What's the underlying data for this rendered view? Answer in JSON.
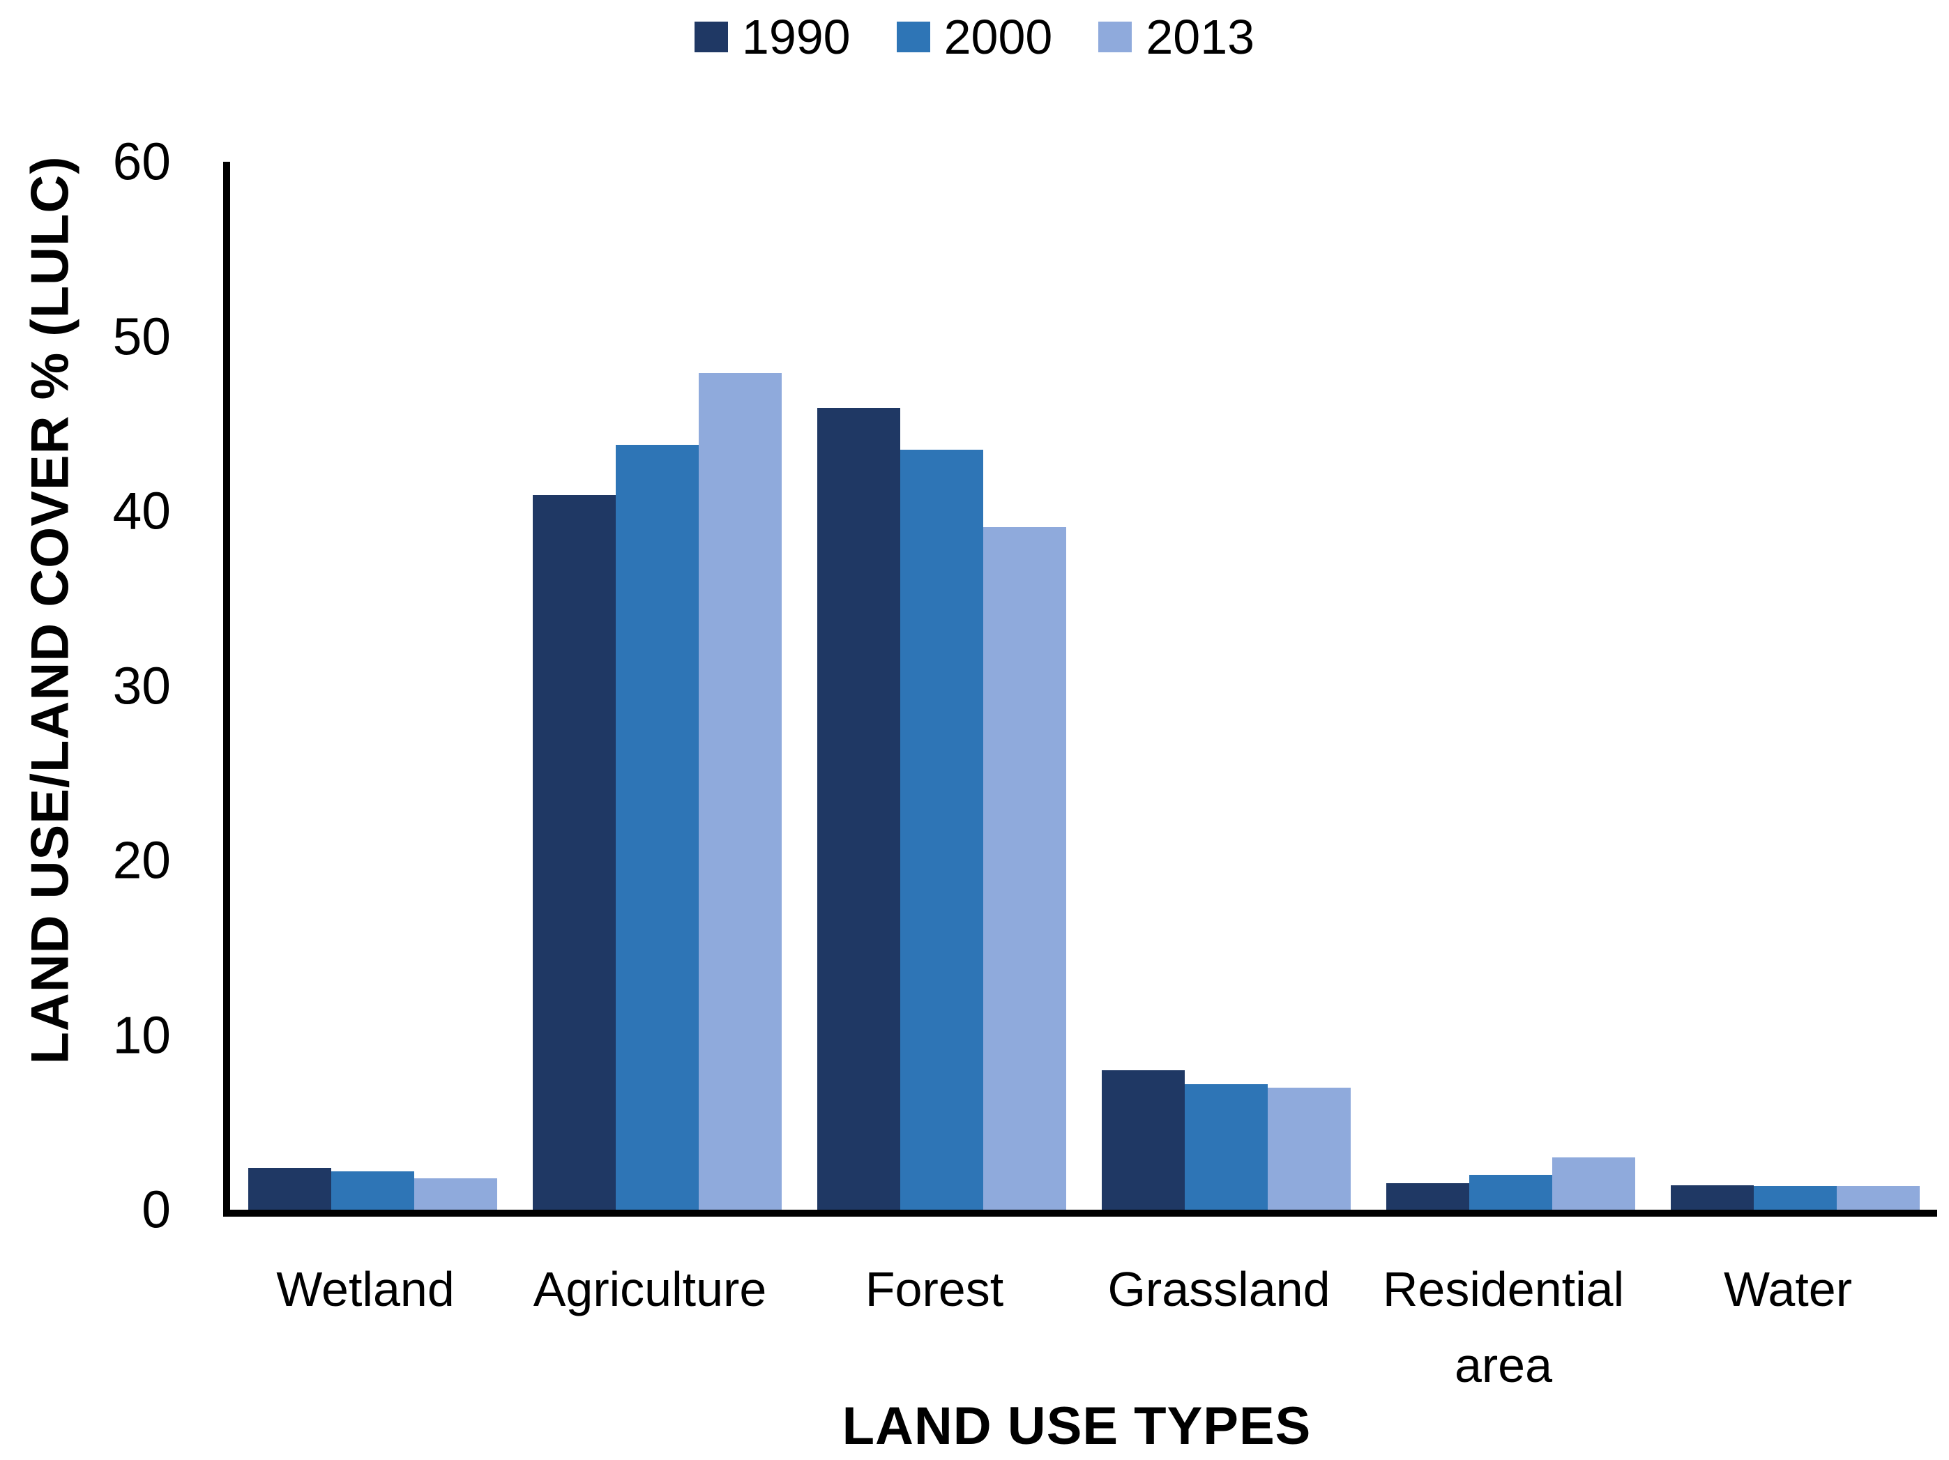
{
  "chart_data": {
    "type": "bar",
    "title": "",
    "categories": [
      "Wetland",
      "Agriculture",
      "Forest",
      "Grassland",
      "Residential area",
      "Water"
    ],
    "series": [
      {
        "name": "1990",
        "color": "#1F3864",
        "values": [
          2.4,
          40.9,
          45.9,
          8.0,
          1.5,
          1.4
        ]
      },
      {
        "name": "2000",
        "color": "#2E75B6",
        "values": [
          2.2,
          43.8,
          43.5,
          7.2,
          2.0,
          1.35
        ]
      },
      {
        "name": "2013",
        "color": "#8FAADC",
        "values": [
          1.8,
          47.9,
          39.1,
          7.0,
          3.0,
          1.35
        ]
      }
    ],
    "xlabel": "LAND USE TYPES",
    "ylabel": "LAND USE/LAND COVER % (LULC)",
    "ylim": [
      0,
      60
    ],
    "ytick_step": 10,
    "ytick_labels": [
      "0",
      "10",
      "20",
      "30",
      "40",
      "50",
      "60"
    ],
    "grid": false,
    "legend_position": "top-center",
    "axis_color": "#000000",
    "background_color": "#FFFFFF"
  }
}
